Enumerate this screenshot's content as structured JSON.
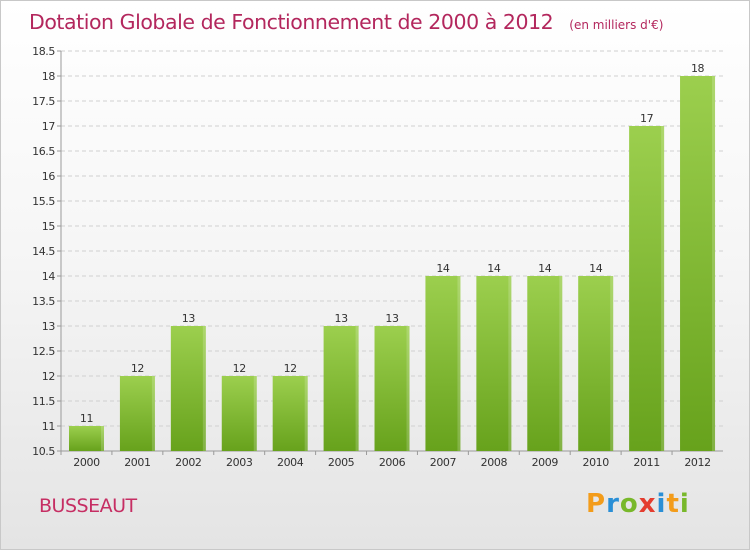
{
  "title": "Dotation Globale de Fonctionnement de 2000 à 2012",
  "subtitle": "(en milliers d'€)",
  "location": "BUSSEAUT",
  "logo": {
    "letters": [
      "P",
      "r",
      "o",
      "x",
      "i",
      "t",
      "i"
    ],
    "colors": [
      "#f39c1a",
      "#2a8fd6",
      "#78b82a",
      "#e43d2f",
      "#2a8fd6",
      "#f39c1a",
      "#78b82a"
    ]
  },
  "colors": {
    "title": "#b3275d",
    "bar_top": "#9ccf4e",
    "bar_bottom": "#67a21c",
    "grid": "#d0d0d0",
    "axis": "#9a9a9a",
    "label": "#333333"
  },
  "chart_data": {
    "type": "bar",
    "categories": [
      "2000",
      "2001",
      "2002",
      "2003",
      "2004",
      "2005",
      "2006",
      "2007",
      "2008",
      "2009",
      "2010",
      "2011",
      "2012"
    ],
    "values": [
      11,
      12,
      13,
      12,
      12,
      13,
      13,
      14,
      14,
      14,
      14,
      17,
      18
    ],
    "value_labels": [
      "11",
      "12",
      "13",
      "12",
      "12",
      "13",
      "13",
      "14",
      "14",
      "14",
      "14",
      "17",
      "18"
    ],
    "ylim": [
      10.5,
      18.5
    ],
    "yticks": [
      "10.5",
      "11",
      "11.5",
      "12",
      "12.5",
      "13",
      "13.5",
      "14",
      "14.5",
      "15",
      "15.5",
      "16",
      "16.5",
      "17",
      "17.5",
      "18",
      "18.5"
    ],
    "xlabel": "",
    "ylabel": "",
    "grid": true,
    "legend": "none"
  }
}
